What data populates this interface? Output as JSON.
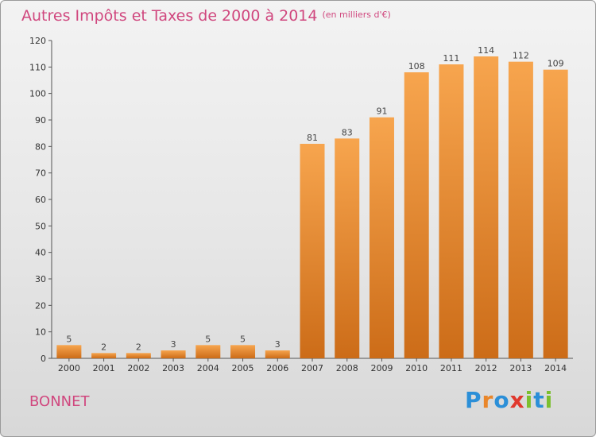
{
  "title": {
    "main": "Autres Impôts et Taxes de 2000 à 2014",
    "unit": "(en milliers d'€)"
  },
  "town": "BONNET",
  "logo": {
    "text": "Proxiti",
    "letters": [
      {
        "ch": "P",
        "color": "#2b8fd8"
      },
      {
        "ch": "r",
        "color": "#e9862a"
      },
      {
        "ch": "o",
        "color": "#2b8fd8"
      },
      {
        "ch": "x",
        "color": "#e0382d"
      },
      {
        "ch": "i",
        "color": "#7cbf2e"
      },
      {
        "ch": "t",
        "color": "#2b8fd8"
      },
      {
        "ch": "i",
        "color": "#7cbf2e"
      }
    ]
  },
  "colors": {
    "accent": "#d0477e",
    "bar_top": "#f7a54e",
    "bar_bottom": "#cc6c18"
  },
  "chart_data": {
    "type": "bar",
    "categories": [
      "2000",
      "2001",
      "2002",
      "2003",
      "2004",
      "2005",
      "2006",
      "2007",
      "2008",
      "2009",
      "2010",
      "2011",
      "2012",
      "2013",
      "2014"
    ],
    "values": [
      5,
      2,
      2,
      3,
      5,
      5,
      3,
      81,
      83,
      91,
      108,
      111,
      114,
      112,
      109
    ],
    "ylim": [
      0,
      120
    ],
    "yticks": [
      0,
      10,
      20,
      30,
      40,
      50,
      60,
      70,
      80,
      90,
      100,
      110,
      120
    ],
    "grid": false,
    "legend": "none"
  }
}
